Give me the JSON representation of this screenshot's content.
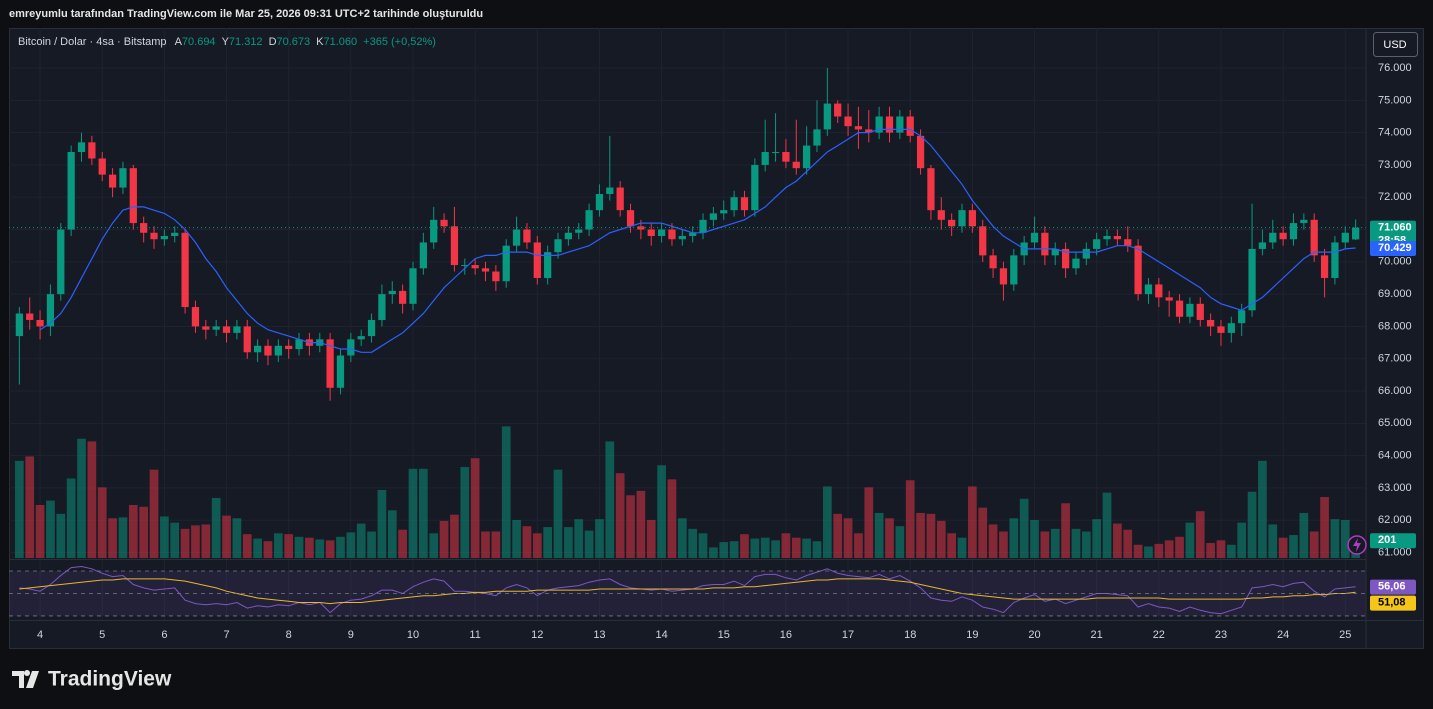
{
  "chart_data": {
    "type": "candlestick",
    "header_text": "emreyumlu tarafından TradingView.com ile Mar 25, 2026 09:31 UTC+2 tarihinde oluşturuldu",
    "title": "Bitcoin / Dolar · 4sa · Bitstamp",
    "legend": [
      {
        "key": "A",
        "value": "70.694"
      },
      {
        "key": "Y",
        "value": "71.312"
      },
      {
        "key": "D",
        "value": "70.673"
      },
      {
        "key": "K",
        "value": "71.060"
      }
    ],
    "change_label": "+365 (+0,52%)",
    "currency": "USD",
    "countdown": "28:58",
    "brand": "TradingView",
    "colors": {
      "up": "#089981",
      "down": "#f23645",
      "ma": "#2962ff",
      "rsi": "#7e57c2",
      "rsi_ma": "#f5c518"
    },
    "open": [
      67700,
      68400,
      68200,
      68000,
      69000,
      71000,
      73400,
      73700,
      73200,
      72700,
      72300,
      72900,
      71200,
      70900,
      70700,
      70800,
      70900,
      68600,
      68000,
      67900,
      68000,
      67800,
      68000,
      67200,
      67400,
      67100,
      67400,
      67300,
      67600,
      67400,
      67600,
      66100,
      67100,
      67600,
      67700,
      68200,
      69000,
      69100,
      68700,
      69800,
      70600,
      71300,
      71100,
      69900,
      69900,
      69800,
      69700,
      69400,
      70500,
      71000,
      70600,
      69500,
      70300,
      70700,
      70900,
      71000,
      71600,
      72100,
      72300,
      71600,
      71100,
      71000,
      70800,
      71000,
      70700,
      70800,
      70900,
      71300,
      71500,
      71600,
      72000,
      71600,
      73000,
      73400,
      73400,
      73100,
      72900,
      73600,
      74100,
      74900,
      74500,
      74200,
      74100,
      74000,
      74500,
      74000,
      74500,
      73900,
      72900,
      71600,
      71300,
      71100,
      71600,
      71100,
      70200,
      69800,
      69300,
      70200,
      70600,
      70900,
      70200,
      70400,
      69800,
      70100,
      70400,
      70700,
      70800,
      70700,
      70500,
      69000,
      69300,
      68900,
      68800,
      68300,
      68700,
      68200,
      68000,
      67800,
      68100,
      68500,
      70400,
      70600,
      70900,
      70700,
      71200,
      71300,
      70200,
      69500,
      70600,
      70694
    ],
    "high": [
      68600,
      68900,
      68500,
      69300,
      71200,
      73600,
      74000,
      73900,
      73400,
      72900,
      73100,
      73000,
      71400,
      71100,
      71000,
      71100,
      71000,
      68800,
      68200,
      68200,
      68200,
      68200,
      68200,
      67600,
      67600,
      67600,
      67600,
      67800,
      67800,
      67800,
      67800,
      67300,
      67800,
      67900,
      68400,
      69300,
      69400,
      69300,
      70000,
      70900,
      71700,
      71500,
      71700,
      70100,
      70100,
      70000,
      69900,
      70700,
      71400,
      71200,
      70800,
      70500,
      70900,
      71100,
      71200,
      71800,
      72400,
      73900,
      72500,
      71800,
      71300,
      71200,
      71200,
      71200,
      71000,
      71100,
      71500,
      71700,
      71900,
      72200,
      72200,
      73200,
      74400,
      74600,
      73800,
      74400,
      74200,
      75000,
      76000,
      75000,
      74900,
      74800,
      74700,
      74800,
      74800,
      74700,
      74700,
      74100,
      73000,
      72000,
      71500,
      71800,
      71800,
      71300,
      70400,
      70000,
      70400,
      70800,
      71400,
      71100,
      70600,
      70600,
      70300,
      70600,
      70900,
      71000,
      71000,
      71100,
      70700,
      69500,
      69500,
      69100,
      69000,
      68900,
      68900,
      68400,
      68200,
      68300,
      68700,
      71800,
      71000,
      71300,
      71100,
      71500,
      71500,
      71500,
      70400,
      70800,
      71100,
      71312
    ],
    "low": [
      66200,
      67900,
      67600,
      67700,
      68800,
      70800,
      73100,
      73000,
      72500,
      72000,
      72100,
      71000,
      70600,
      70400,
      70500,
      70600,
      68400,
      67800,
      67600,
      67700,
      67500,
      67600,
      67000,
      66900,
      66800,
      66900,
      67000,
      67100,
      67100,
      67200,
      65700,
      65900,
      66900,
      67400,
      67500,
      68000,
      68700,
      68400,
      68500,
      69600,
      70400,
      70900,
      69700,
      69600,
      69600,
      69400,
      69100,
      69200,
      70300,
      70400,
      69300,
      69300,
      70100,
      70500,
      70700,
      70800,
      71400,
      71900,
      71400,
      70900,
      70700,
      70500,
      70600,
      70500,
      70500,
      70600,
      70700,
      71100,
      71300,
      71400,
      71400,
      71400,
      72800,
      73100,
      72900,
      72700,
      72700,
      73400,
      73900,
      74300,
      73900,
      73500,
      73700,
      73800,
      73700,
      73800,
      73700,
      72700,
      71300,
      71000,
      70800,
      70900,
      70900,
      70000,
      69500,
      68800,
      69100,
      69900,
      70400,
      69900,
      69900,
      69500,
      69600,
      69900,
      70200,
      70500,
      70500,
      70300,
      68800,
      68700,
      68600,
      68300,
      68100,
      68100,
      68000,
      67700,
      67400,
      67500,
      67700,
      68300,
      70200,
      70400,
      70500,
      70500,
      71000,
      70000,
      68900,
      69300,
      70400,
      70673
    ],
    "close": [
      68400,
      68200,
      68000,
      69000,
      71000,
      73400,
      73700,
      73200,
      72700,
      72300,
      72900,
      71200,
      70900,
      70700,
      70800,
      70900,
      68600,
      68000,
      67900,
      68000,
      67800,
      68000,
      67200,
      67400,
      67100,
      67400,
      67300,
      67600,
      67400,
      67600,
      66100,
      67100,
      67600,
      67700,
      68200,
      69000,
      69100,
      68700,
      69800,
      70600,
      71300,
      71100,
      69900,
      69900,
      69800,
      69700,
      69400,
      70500,
      71000,
      70600,
      69500,
      70300,
      70700,
      70900,
      71000,
      71600,
      72100,
      72300,
      71600,
      71100,
      71000,
      70800,
      71000,
      70700,
      70800,
      70900,
      71300,
      71500,
      71600,
      72000,
      71600,
      73000,
      73400,
      73400,
      73100,
      72900,
      73600,
      74100,
      74900,
      74500,
      74200,
      74100,
      74000,
      74500,
      74000,
      74500,
      73900,
      72900,
      71600,
      71300,
      71100,
      71600,
      71100,
      70200,
      69800,
      69300,
      70200,
      70600,
      70900,
      70200,
      70400,
      69800,
      70100,
      70400,
      70700,
      70800,
      70700,
      70500,
      69000,
      69300,
      68900,
      68800,
      68300,
      68700,
      68200,
      68000,
      67800,
      68100,
      68500,
      70400,
      70600,
      70900,
      70700,
      71200,
      71300,
      70200,
      69500,
      70600,
      70900,
      71060
    ],
    "close_label": "71.060",
    "volume": [
      1100,
      1150,
      600,
      650,
      500,
      900,
      1350,
      1320,
      800,
      450,
      460,
      600,
      580,
      1000,
      470,
      400,
      330,
      370,
      380,
      680,
      480,
      450,
      270,
      220,
      190,
      280,
      270,
      240,
      230,
      210,
      200,
      240,
      290,
      390,
      300,
      770,
      540,
      320,
      1010,
      1010,
      280,
      420,
      490,
      1030,
      1130,
      300,
      300,
      1490,
      430,
      360,
      280,
      350,
      1000,
      350,
      440,
      310,
      440,
      1320,
      960,
      710,
      760,
      430,
      1050,
      890,
      450,
      330,
      280,
      120,
      180,
      190,
      270,
      220,
      230,
      200,
      280,
      230,
      220,
      190,
      810,
      500,
      450,
      280,
      800,
      510,
      450,
      360,
      880,
      510,
      500,
      420,
      280,
      230,
      810,
      570,
      380,
      300,
      450,
      670,
      430,
      300,
      330,
      620,
      330,
      300,
      440,
      740,
      390,
      320,
      150,
      130,
      160,
      200,
      240,
      400,
      530,
      170,
      200,
      150,
      400,
      750,
      1100,
      380,
      230,
      260,
      510,
      300,
      690,
      440,
      430,
      201
    ],
    "volume_label": "201",
    "ma": [
      null,
      null,
      67900,
      68100,
      68400,
      68900,
      69500,
      70100,
      70700,
      71200,
      71600,
      71700,
      71700,
      71600,
      71500,
      71300,
      71000,
      70600,
      70100,
      69700,
      69200,
      68800,
      68400,
      68100,
      67900,
      67800,
      67700,
      67600,
      67500,
      67500,
      67400,
      67300,
      67300,
      67200,
      67200,
      67400,
      67600,
      67800,
      68100,
      68400,
      68800,
      69200,
      69500,
      69800,
      70100,
      70200,
      70200,
      70300,
      70300,
      70300,
      70200,
      70200,
      70200,
      70300,
      70400,
      70500,
      70700,
      70900,
      71000,
      71100,
      71200,
      71200,
      71200,
      71100,
      71000,
      70900,
      70900,
      71000,
      71100,
      71200,
      71300,
      71500,
      71700,
      72000,
      72300,
      72500,
      72800,
      73100,
      73400,
      73600,
      73800,
      74000,
      74000,
      74100,
      74100,
      74100,
      74100,
      73900,
      73600,
      73200,
      72800,
      72400,
      71900,
      71500,
      71100,
      70800,
      70600,
      70400,
      70400,
      70400,
      70400,
      70300,
      70300,
      70300,
      70300,
      70400,
      70500,
      70500,
      70400,
      70200,
      70000,
      69800,
      69600,
      69400,
      69200,
      68900,
      68700,
      68600,
      68500,
      68700,
      68900,
      69200,
      69500,
      69800,
      70100,
      70300,
      70300,
      70300,
      70400,
      70429
    ],
    "ma_label": "70.429",
    "rsi": [
      55,
      54,
      52,
      58,
      66,
      73,
      74,
      72,
      68,
      65,
      66,
      58,
      55,
      53,
      54,
      55,
      44,
      41,
      40,
      41,
      40,
      42,
      37,
      39,
      38,
      40,
      39,
      42,
      40,
      42,
      33,
      41,
      44,
      45,
      48,
      53,
      53,
      50,
      56,
      60,
      63,
      61,
      52,
      52,
      51,
      50,
      48,
      55,
      58,
      55,
      48,
      53,
      55,
      56,
      57,
      60,
      62,
      63,
      58,
      55,
      54,
      53,
      54,
      52,
      53,
      54,
      57,
      58,
      58,
      61,
      57,
      65,
      67,
      67,
      64,
      62,
      66,
      69,
      72,
      68,
      66,
      65,
      64,
      67,
      63,
      66,
      61,
      55,
      46,
      44,
      43,
      47,
      44,
      38,
      36,
      33,
      42,
      46,
      49,
      43,
      45,
      41,
      44,
      47,
      50,
      50,
      49,
      48,
      38,
      41,
      38,
      37,
      34,
      38,
      35,
      33,
      32,
      35,
      38,
      55,
      56,
      58,
      56,
      59,
      60,
      52,
      47,
      54,
      55,
      56.06
    ],
    "rsi_label": "56,06",
    "rsi_ma": [
      54,
      55,
      56,
      57,
      58,
      59,
      60,
      61,
      62,
      62,
      63,
      63,
      63,
      63,
      63,
      62,
      61,
      59,
      57,
      55,
      52,
      50,
      48,
      46,
      45,
      44,
      43,
      42,
      42,
      42,
      41,
      42,
      42,
      42,
      43,
      44,
      45,
      46,
      47,
      48,
      48,
      49,
      50,
      50,
      51,
      51,
      52,
      52,
      52,
      52,
      53,
      53,
      53,
      53,
      53,
      53,
      54,
      54,
      54,
      54,
      54,
      54,
      54,
      54,
      54,
      54,
      54,
      55,
      55,
      55,
      56,
      56,
      57,
      58,
      59,
      60,
      61,
      62,
      62,
      63,
      63,
      63,
      63,
      63,
      62,
      61,
      60,
      58,
      56,
      54,
      52,
      50,
      49,
      48,
      47,
      46,
      45,
      45,
      45,
      45,
      45,
      45,
      45,
      45,
      46,
      46,
      46,
      46,
      46,
      46,
      46,
      45,
      45,
      45,
      45,
      45,
      45,
      45,
      45,
      46,
      46,
      47,
      47,
      48,
      48,
      49,
      49,
      50,
      50,
      51.08
    ],
    "rsi_ma_label": "51,08",
    "rsi_lim": [
      26.4,
      79.8
    ],
    "rsi_levels": [
      70,
      50,
      30
    ],
    "volume_lim": [
      0,
      6000
    ],
    "xlim": [
      -1,
      130
    ],
    "xticks": [
      {
        "value": 2,
        "label": "4"
      },
      {
        "value": 8,
        "label": "5"
      },
      {
        "value": 14,
        "label": "6"
      },
      {
        "value": 20,
        "label": "7"
      },
      {
        "value": 26,
        "label": "8"
      },
      {
        "value": 32,
        "label": "9"
      },
      {
        "value": 38,
        "label": "10"
      },
      {
        "value": 44,
        "label": "11"
      },
      {
        "value": 50,
        "label": "12"
      },
      {
        "value": 56,
        "label": "13"
      },
      {
        "value": 62,
        "label": "14"
      },
      {
        "value": 68,
        "label": "15"
      },
      {
        "value": 74,
        "label": "16"
      },
      {
        "value": 80,
        "label": "17"
      },
      {
        "value": 86,
        "label": "18"
      },
      {
        "value": 92,
        "label": "19"
      },
      {
        "value": 98,
        "label": "20"
      },
      {
        "value": 104,
        "label": "21"
      },
      {
        "value": 110,
        "label": "22"
      },
      {
        "value": 116,
        "label": "23"
      },
      {
        "value": 122,
        "label": "24"
      },
      {
        "value": 128,
        "label": "25"
      }
    ],
    "ylim": [
      60830,
      77240
    ],
    "yticks": [
      {
        "value": 61000,
        "label": "61.000"
      },
      {
        "value": 62000,
        "label": "62.000"
      },
      {
        "value": 63000,
        "label": "63.000"
      },
      {
        "value": 64000,
        "label": "64.000"
      },
      {
        "value": 65000,
        "label": "65.000"
      },
      {
        "value": 66000,
        "label": "66.000"
      },
      {
        "value": 67000,
        "label": "67.000"
      },
      {
        "value": 68000,
        "label": "68.000"
      },
      {
        "value": 69000,
        "label": "69.000"
      },
      {
        "value": 70000,
        "label": "70.000"
      },
      {
        "value": 71000,
        "label": "71.000"
      },
      {
        "value": 72000,
        "label": "72.000"
      },
      {
        "value": 73000,
        "label": "73.000"
      },
      {
        "value": 74000,
        "label": "74.000"
      },
      {
        "value": 75000,
        "label": "75.000"
      },
      {
        "value": 76000,
        "label": "76.000"
      }
    ],
    "grid": true
  }
}
